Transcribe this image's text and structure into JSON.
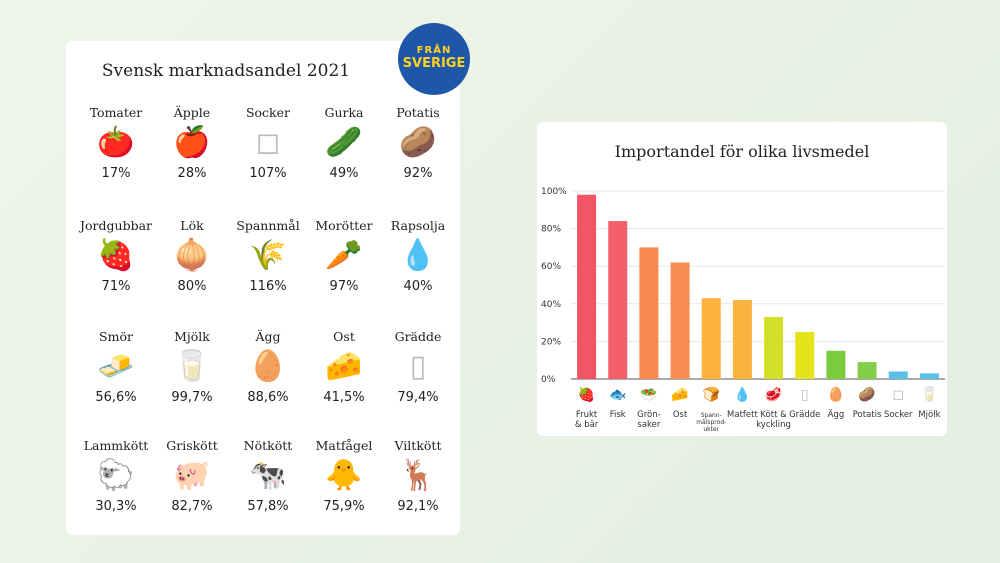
{
  "left_panel": {
    "title": "Svensk marknadsandel 2021",
    "badge": {
      "line1": "FRÅN",
      "line2": "SVERIGE",
      "color": "#1f57a8",
      "text_color": "#ffd21f"
    },
    "items": [
      {
        "name": "Tomater",
        "value": "17%",
        "icon": "tomato-icon",
        "glyph": "🍅",
        "color": "#e53b2c"
      },
      {
        "name": "Äpple",
        "value": "28%",
        "icon": "apple-icon",
        "glyph": "🍎",
        "color": "#d9262b"
      },
      {
        "name": "Socker",
        "value": "107%",
        "icon": "sugar-cubes-icon",
        "glyph": "◻",
        "color": "#bbbbbb"
      },
      {
        "name": "Gurka",
        "value": "49%",
        "icon": "cucumber-icon",
        "glyph": "🥒",
        "color": "#3ca23c"
      },
      {
        "name": "Potatis",
        "value": "92%",
        "icon": "potato-icon",
        "glyph": "🥔",
        "color": "#a0693a"
      },
      {
        "name": "Jordgubbar",
        "value": "71%",
        "icon": "strawberry-icon",
        "glyph": "🍓",
        "color": "#d8232f"
      },
      {
        "name": "Lök",
        "value": "80%",
        "icon": "onion-icon",
        "glyph": "🧅",
        "color": "#c98a3c"
      },
      {
        "name": "Spannmål",
        "value": "116%",
        "icon": "grain-icon",
        "glyph": "🌾",
        "color": "#c79a2c"
      },
      {
        "name": "Morötter",
        "value": "97%",
        "icon": "carrot-icon",
        "glyph": "🥕",
        "color": "#ef7a1f"
      },
      {
        "name": "Rapsolja",
        "value": "40%",
        "icon": "oil-drop-icon",
        "glyph": "💧",
        "color": "#e8b81c"
      },
      {
        "name": "Smör",
        "value": "56,6%",
        "icon": "butter-icon",
        "glyph": "🧈",
        "color": "#f2d04a"
      },
      {
        "name": "Mjölk",
        "value": "99,7%",
        "icon": "milk-glass-icon",
        "glyph": "🥛",
        "color": "#c9c9c9"
      },
      {
        "name": "Ägg",
        "value": "88,6%",
        "icon": "egg-icon",
        "glyph": "🥚",
        "color": "#c2bfb5"
      },
      {
        "name": "Ost",
        "value": "41,5%",
        "icon": "cheese-icon",
        "glyph": "🧀",
        "color": "#f2bd2a"
      },
      {
        "name": "Grädde",
        "value": "79,4%",
        "icon": "cream-carton-icon",
        "glyph": "▯",
        "color": "#bbbbbb"
      },
      {
        "name": "Lammkött",
        "value": "30,3%",
        "icon": "sheep-icon",
        "glyph": "🐑",
        "color": "#8a8a8a"
      },
      {
        "name": "Griskött",
        "value": "82,7%",
        "icon": "pig-icon",
        "glyph": "🐖",
        "color": "#e89a9a"
      },
      {
        "name": "Nötkött",
        "value": "57,8%",
        "icon": "cow-icon",
        "glyph": "🐄",
        "color": "#333333"
      },
      {
        "name": "Matfågel",
        "value": "75,9%",
        "icon": "chick-icon",
        "glyph": "🐥",
        "color": "#f2c41c"
      },
      {
        "name": "Viltkött",
        "value": "92,1%",
        "icon": "deer-icon",
        "glyph": "🦌",
        "color": "#9a6a3a"
      }
    ]
  },
  "chart_data": {
    "type": "bar",
    "title": "Importandel för olika livsmedel",
    "xlabel": "",
    "ylabel": "",
    "ylim": [
      0,
      100
    ],
    "yticks": [
      "0%",
      "20%",
      "40%",
      "60%",
      "80%",
      "100%"
    ],
    "grid": true,
    "categories": [
      {
        "label": [
          "Frukt",
          "& bär"
        ],
        "icon": "strawberry-icon"
      },
      {
        "label": [
          "Fisk"
        ],
        "icon": "fish-icon"
      },
      {
        "label": [
          "Grön-",
          "saker"
        ],
        "icon": "salad-icon"
      },
      {
        "label": [
          "Ost"
        ],
        "icon": "cheese-icon"
      },
      {
        "label": [
          "Spann-",
          "målsprod-",
          "ukter"
        ],
        "icon": "bread-icon",
        "small": true
      },
      {
        "label": [
          "Matfett"
        ],
        "icon": "oil-drop-icon"
      },
      {
        "label": [
          "Kött &",
          "kyckling"
        ],
        "icon": "meat-icon"
      },
      {
        "label": [
          "Grädde"
        ],
        "icon": "cream-carton-icon"
      },
      {
        "label": [
          "Ägg"
        ],
        "icon": "egg-icon"
      },
      {
        "label": [
          "Potatis"
        ],
        "icon": "potato-icon"
      },
      {
        "label": [
          "Socker"
        ],
        "icon": "sugar-cubes-icon"
      },
      {
        "label": [
          "Mjölk"
        ],
        "icon": "milk-glass-icon"
      }
    ],
    "values": [
      98,
      84,
      70,
      62,
      43,
      42,
      33,
      25,
      15,
      9,
      4,
      3
    ],
    "colors": [
      "#f25563",
      "#f4606a",
      "#f7894f",
      "#f78d52",
      "#fbb23f",
      "#f9b440",
      "#d4df2a",
      "#e4e31c",
      "#7acb3d",
      "#84cf4a",
      "#5cc0e6",
      "#5cc0e6"
    ],
    "icon_glyphs": [
      "🍓",
      "🐟",
      "🥗",
      "🧀",
      "🍞",
      "💧",
      "🥩",
      "▯",
      "🥚",
      "🥔",
      "◻",
      "🥛"
    ],
    "icon_colors": [
      "#d8232f",
      "#3d7fc1",
      "#3ca23c",
      "#f2bd2a",
      "#c48a3c",
      "#e8b81c",
      "#c23a3a",
      "#bbbbbb",
      "#c2bfb5",
      "#a0693a",
      "#bbbbbb",
      "#bbbbbb"
    ]
  }
}
